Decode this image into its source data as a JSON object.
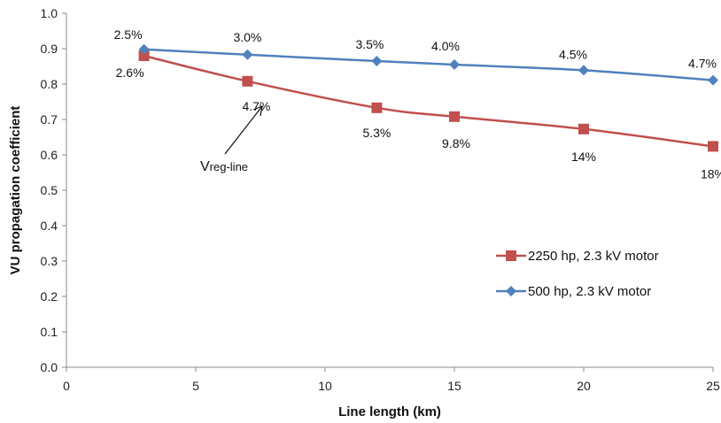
{
  "chart_data": {
    "type": "line",
    "xlabel": "Line length (km)",
    "ylabel": "VU propagation coefficient",
    "xlim": [
      0,
      25
    ],
    "ylim": [
      0,
      1.0
    ],
    "x_ticks": [
      "0",
      "5",
      "10",
      "15",
      "20",
      "25"
    ],
    "y_ticks": [
      "0.0",
      "0.1",
      "0.2",
      "0.3",
      "0.4",
      "0.5",
      "0.6",
      "0.7",
      "0.8",
      "0.9",
      "1.0"
    ],
    "grid": false,
    "legend_position": "right",
    "series": [
      {
        "name": "2250 hp, 2.3 kV motor",
        "color": "#c0504d",
        "marker": "square",
        "x": [
          3,
          7,
          12,
          15,
          20,
          25
        ],
        "y": [
          0.88,
          0.808,
          0.733,
          0.708,
          0.673,
          0.624
        ],
        "labels": [
          "2.6%",
          "4.7%",
          "5.3%",
          "9.8%",
          "14%",
          "18%"
        ]
      },
      {
        "name": "500 hp, 2.3 kV motor",
        "color": "#4f81bd",
        "marker": "diamond",
        "x": [
          3,
          7,
          12,
          15,
          20,
          25
        ],
        "y": [
          0.898,
          0.883,
          0.865,
          0.855,
          0.839,
          0.811
        ],
        "labels": [
          "2.5%",
          "3.0%",
          "3.5%",
          "4.0%",
          "4.5%",
          "4.7%"
        ]
      }
    ],
    "annotation": {
      "main": "V",
      "subscript": "reg-line"
    }
  }
}
